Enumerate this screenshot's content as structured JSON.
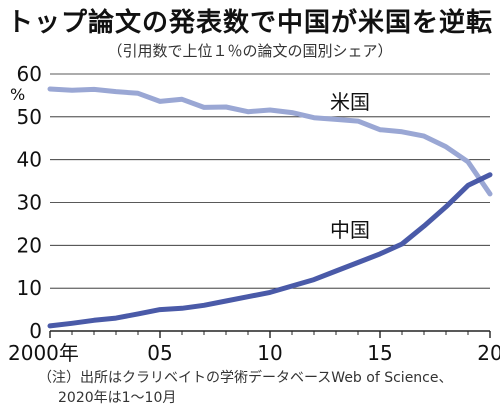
{
  "title": "トップ論文の発表数で中国が米国を逆転",
  "subtitle": "（引用数で上位１％の論文の国別シェア）",
  "note": {
    "line1": "（注）出所はクラリベイトの学術データベースWeb of Science、",
    "line2": "2020年は1～10月"
  },
  "colors": {
    "us": "#9aa7d4",
    "china": "#4a5aa8",
    "grid": "#222222",
    "background": "#ffffff"
  },
  "chart_data": {
    "type": "line",
    "title": "トップ論文の発表数で中国が米国を逆転",
    "subtitle": "（引用数で上位１％の論文の国別シェア）",
    "ylabel": "%",
    "xlim": [
      2000,
      2020
    ],
    "ylim": [
      0,
      60
    ],
    "x_tick_values": [
      2000,
      2005,
      2010,
      2015,
      2020
    ],
    "x_tick_labels": [
      "2000年",
      "05",
      "10",
      "15",
      "20"
    ],
    "y_tick_values": [
      0,
      10,
      20,
      30,
      40,
      50,
      60
    ],
    "y_tick_labels": [
      "0",
      "10",
      "20",
      "30",
      "40",
      "50",
      "60"
    ],
    "grid": true,
    "x": [
      2000,
      2001,
      2002,
      2003,
      2004,
      2005,
      2006,
      2007,
      2008,
      2009,
      2010,
      2011,
      2012,
      2013,
      2014,
      2015,
      2016,
      2017,
      2018,
      2019,
      2020
    ],
    "series": [
      {
        "name": "米国",
        "values": [
          56.5,
          56.2,
          56.4,
          55.9,
          55.5,
          53.6,
          54.1,
          52.2,
          52.3,
          51.2,
          51.6,
          51.0,
          49.8,
          49.4,
          49.0,
          47.0,
          46.5,
          45.5,
          43.0,
          39.5,
          32.0
        ]
      },
      {
        "name": "中国",
        "values": [
          1.2,
          1.8,
          2.5,
          3.0,
          4.0,
          5.0,
          5.3,
          6.0,
          7.0,
          8.0,
          9.0,
          10.5,
          12.0,
          14.0,
          16.0,
          18.0,
          20.3,
          24.5,
          29.0,
          34.0,
          36.5
        ]
      }
    ]
  }
}
